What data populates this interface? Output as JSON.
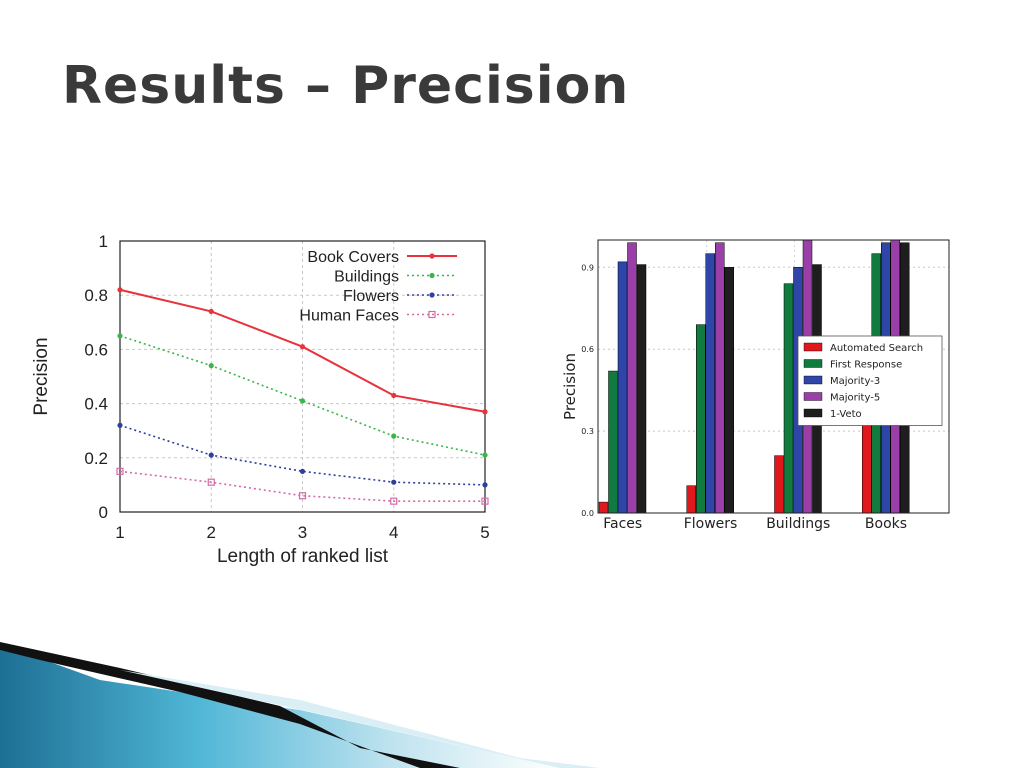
{
  "slide": {
    "title": "Results – Precision"
  },
  "colors": {
    "title": "#3a3a3a",
    "decoration_teal": "#2f8fb0",
    "decoration_dark": "#111111"
  },
  "chart_data": [
    {
      "type": "line",
      "title": "",
      "xlabel": "Length of ranked list",
      "ylabel": "Precision",
      "x": [
        1,
        2,
        3,
        4,
        5
      ],
      "xlim": [
        1,
        5
      ],
      "ylim": [
        0,
        1
      ],
      "yticks": [
        "0",
        "0.2",
        "0.4",
        "0.6",
        "0.8",
        "1"
      ],
      "xticks": [
        "1",
        "2",
        "3",
        "4",
        "5"
      ],
      "grid": true,
      "legend_position": "top-right",
      "series": [
        {
          "name": "Book Covers",
          "values": [
            0.82,
            0.74,
            0.61,
            0.43,
            0.37
          ],
          "color": "#e8323c",
          "style": "solid",
          "marker": "dot"
        },
        {
          "name": "Buildings",
          "values": [
            0.65,
            0.54,
            0.41,
            0.28,
            0.21
          ],
          "color": "#3ab54a",
          "style": "dotted",
          "marker": "dot"
        },
        {
          "name": "Flowers",
          "values": [
            0.32,
            0.21,
            0.15,
            0.11,
            0.1
          ],
          "color": "#2f3f9e",
          "style": "dotted",
          "marker": "dot"
        },
        {
          "name": "Human Faces",
          "values": [
            0.15,
            0.11,
            0.06,
            0.04,
            0.04
          ],
          "color": "#d36aa8",
          "style": "dotted",
          "marker": "square"
        }
      ]
    },
    {
      "type": "bar",
      "title": "",
      "xlabel": "",
      "ylabel": "Precision",
      "categories": [
        "Faces",
        "Flowers",
        "Buildings",
        "Books"
      ],
      "ylim": [
        0,
        1.0
      ],
      "yticks": [
        "0.0",
        "0.3",
        "0.6",
        "0.9"
      ],
      "grid": true,
      "legend_position": "center-right",
      "series": [
        {
          "name": "Automated Search",
          "values": [
            0.04,
            0.1,
            0.21,
            0.4
          ],
          "color": "#e0181e"
        },
        {
          "name": "First Response",
          "values": [
            0.52,
            0.69,
            0.84,
            0.95
          ],
          "color": "#117a3e"
        },
        {
          "name": "Majority-3",
          "values": [
            0.92,
            0.95,
            0.9,
            0.99
          ],
          "color": "#2f45a8"
        },
        {
          "name": "Majority-5",
          "values": [
            0.99,
            0.99,
            1.0,
            1.0
          ],
          "color": "#9a3fa8"
        },
        {
          "name": "1-Veto",
          "values": [
            0.91,
            0.9,
            0.91,
            0.99
          ],
          "color": "#1e1e1e"
        }
      ]
    }
  ]
}
